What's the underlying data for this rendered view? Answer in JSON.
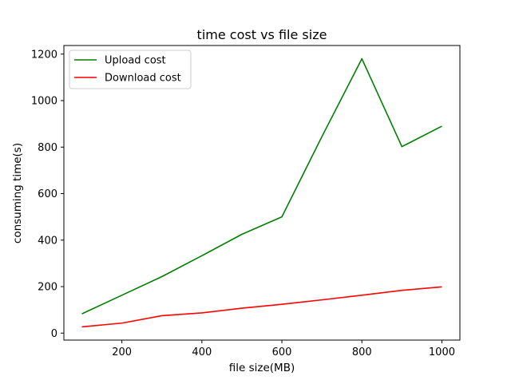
{
  "chart_data": {
    "type": "line",
    "title": "time cost vs file size",
    "xlabel": "file size(MB)",
    "ylabel": "consuming time(s)",
    "xlim": [
      55,
      1045
    ],
    "ylim": [
      -30,
      1237
    ],
    "xticks": [
      200,
      400,
      600,
      800,
      1000
    ],
    "yticks": [
      0,
      200,
      400,
      600,
      800,
      1000,
      1200
    ],
    "grid": false,
    "legend": "top-left",
    "x": [
      100,
      200,
      300,
      400,
      500,
      600,
      700,
      800,
      900,
      1000
    ],
    "series": [
      {
        "name": "Upload cost",
        "color": "#008000",
        "values": [
          83,
          163,
          243,
          333,
          425,
          500,
          845,
          1180,
          802,
          890
        ]
      },
      {
        "name": "Download cost",
        "color": "#ff0000",
        "values": [
          27,
          43,
          75,
          87,
          107,
          124,
          143,
          163,
          184,
          199
        ]
      }
    ]
  }
}
